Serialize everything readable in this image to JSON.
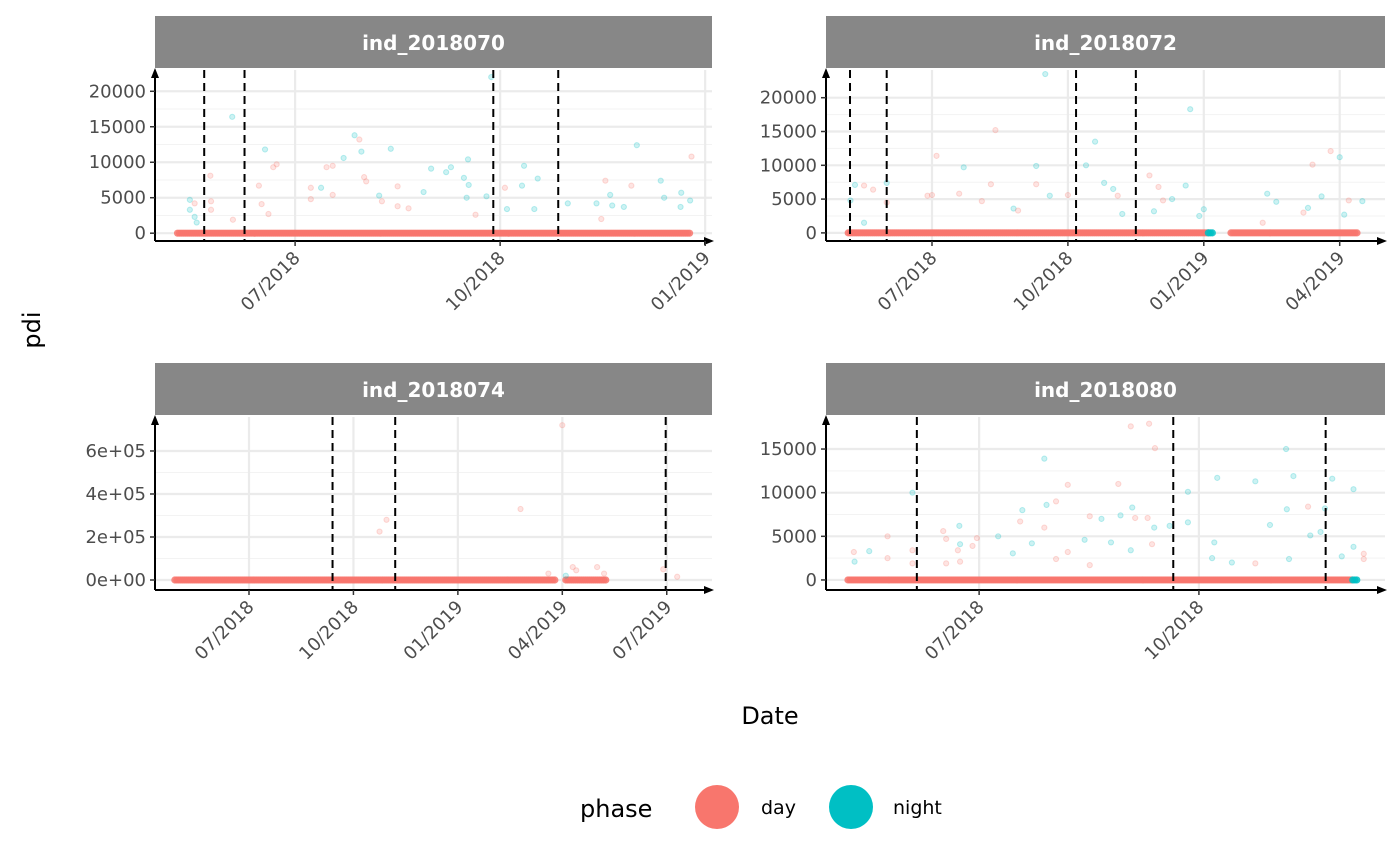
{
  "chart_data": {
    "type": "scatter",
    "x_unit": "months since 01/2018 (6 = 07/2018)",
    "xlabel": "Date",
    "ylabel": "pdi",
    "grid": true,
    "legend": {
      "title": "phase",
      "placement": "bottom",
      "entries": [
        {
          "label": "day",
          "color": "#F8766D"
        },
        {
          "label": "night",
          "color": "#00BFC4"
        }
      ]
    },
    "panels": [
      {
        "title": "ind_2018070",
        "xlim": [
          3.95,
          12.1
        ],
        "ylim": [
          -1100,
          23000
        ],
        "x_ticks": [
          {
            "value": 6,
            "label": "07/2018"
          },
          {
            "value": 9,
            "label": "10/2018"
          },
          {
            "value": 12,
            "label": "01/2019"
          }
        ],
        "y_ticks": [
          {
            "value": 0,
            "label": "0"
          },
          {
            "value": 5000,
            "label": "5000"
          },
          {
            "value": 10000,
            "label": "10000"
          },
          {
            "value": 15000,
            "label": "15000"
          },
          {
            "value": 20000,
            "label": "20000"
          }
        ],
        "vlines": [
          4.67,
          5.26,
          8.9,
          9.85
        ],
        "baseline": [
          {
            "from": 4.28,
            "to": 11.8,
            "phase": "day"
          }
        ],
        "points": {
          "night": [
            [
              4.46,
              4700
            ],
            [
              4.46,
              3300
            ],
            [
              4.53,
              2300
            ],
            [
              4.56,
              1500
            ],
            [
              5.08,
              16400
            ],
            [
              5.56,
              11800
            ],
            [
              6.38,
              6400
            ],
            [
              6.71,
              10600
            ],
            [
              6.87,
              13800
            ],
            [
              6.97,
              11500
            ],
            [
              7.23,
              5300
            ],
            [
              7.4,
              11900
            ],
            [
              7.88,
              5800
            ],
            [
              7.99,
              9100
            ],
            [
              8.21,
              8600
            ],
            [
              8.28,
              9300
            ],
            [
              8.47,
              7800
            ],
            [
              8.54,
              6800
            ],
            [
              8.51,
              5000
            ],
            [
              8.53,
              10400
            ],
            [
              8.8,
              5200
            ],
            [
              8.87,
              22000
            ],
            [
              9.1,
              3400
            ],
            [
              9.32,
              6700
            ],
            [
              9.35,
              9500
            ],
            [
              9.5,
              3400
            ],
            [
              9.55,
              7700
            ],
            [
              9.99,
              4200
            ],
            [
              10.41,
              4200
            ],
            [
              10.61,
              5400
            ],
            [
              10.64,
              3900
            ],
            [
              11.0,
              12400
            ],
            [
              11.35,
              7400
            ],
            [
              11.65,
              5700
            ],
            [
              11.4,
              5000
            ],
            [
              11.78,
              4600
            ],
            [
              11.64,
              3700
            ],
            [
              10.81,
              3700
            ]
          ],
          "day": [
            [
              4.76,
              8100
            ],
            [
              4.77,
              4500
            ],
            [
              4.77,
              3300
            ],
            [
              4.53,
              4200
            ],
            [
              5.09,
              1900
            ],
            [
              5.47,
              6700
            ],
            [
              5.51,
              4100
            ],
            [
              5.61,
              2700
            ],
            [
              5.68,
              9300
            ],
            [
              5.73,
              9700
            ],
            [
              6.23,
              6400
            ],
            [
              6.23,
              4800
            ],
            [
              6.46,
              9300
            ],
            [
              6.55,
              9500
            ],
            [
              6.55,
              5400
            ],
            [
              6.94,
              13200
            ],
            [
              7.01,
              7900
            ],
            [
              7.04,
              7300
            ],
            [
              7.27,
              4500
            ],
            [
              7.5,
              6600
            ],
            [
              7.5,
              3800
            ],
            [
              7.66,
              3500
            ],
            [
              8.64,
              2600
            ],
            [
              9.07,
              6400
            ],
            [
              10.48,
              2000
            ],
            [
              10.54,
              7400
            ],
            [
              10.92,
              6700
            ],
            [
              11.8,
              10800
            ]
          ]
        }
      },
      {
        "title": "ind_2018072",
        "xlim": [
          3.66,
          16.0
        ],
        "ylim": [
          -1200,
          24100
        ],
        "x_ticks": [
          {
            "value": 6,
            "label": "07/2018"
          },
          {
            "value": 9,
            "label": "10/2018"
          },
          {
            "value": 12,
            "label": "01/2019"
          },
          {
            "value": 15,
            "label": "04/2019"
          }
        ],
        "y_ticks": [
          {
            "value": 0,
            "label": "0"
          },
          {
            "value": 5000,
            "label": "5000"
          },
          {
            "value": 10000,
            "label": "10000"
          },
          {
            "value": 15000,
            "label": "15000"
          },
          {
            "value": 20000,
            "label": "20000"
          }
        ],
        "vlines": [
          4.19,
          5.0,
          9.18,
          10.5
        ],
        "baseline": [
          {
            "from": 4.15,
            "to": 12.1,
            "phase": "day"
          },
          {
            "from": 12.1,
            "to": 12.2,
            "phase": "night"
          },
          {
            "from": 12.6,
            "to": 15.4,
            "phase": "day"
          }
        ],
        "points": {
          "night": [
            [
              4.2,
              4800
            ],
            [
              4.3,
              7100
            ],
            [
              4.5,
              1500
            ],
            [
              5.0,
              7400
            ],
            [
              6.7,
              9700
            ],
            [
              7.8,
              3600
            ],
            [
              8.5,
              23500
            ],
            [
              8.3,
              9900
            ],
            [
              8.6,
              5500
            ],
            [
              9.4,
              10000
            ],
            [
              9.6,
              13500
            ],
            [
              9.8,
              7400
            ],
            [
              10.0,
              6500
            ],
            [
              10.2,
              2800
            ],
            [
              10.9,
              3200
            ],
            [
              11.3,
              5000
            ],
            [
              11.6,
              7000
            ],
            [
              11.7,
              18300
            ],
            [
              13.4,
              5800
            ],
            [
              13.6,
              4600
            ],
            [
              14.3,
              3700
            ],
            [
              14.6,
              5400
            ],
            [
              15.0,
              11200
            ],
            [
              15.5,
              4700
            ],
            [
              15.1,
              2700
            ],
            [
              12.0,
              3500
            ],
            [
              11.9,
              2500
            ]
          ],
          "day": [
            [
              4.5,
              7000
            ],
            [
              4.7,
              6400
            ],
            [
              5.0,
              4500
            ],
            [
              5.9,
              5500
            ],
            [
              6.1,
              11400
            ],
            [
              6.0,
              5600
            ],
            [
              6.6,
              5800
            ],
            [
              7.1,
              4700
            ],
            [
              7.3,
              7200
            ],
            [
              7.4,
              15200
            ],
            [
              7.9,
              3300
            ],
            [
              8.3,
              7200
            ],
            [
              9.0,
              5600
            ],
            [
              10.1,
              5500
            ],
            [
              10.8,
              8500
            ],
            [
              11.1,
              4800
            ],
            [
              11.0,
              6800
            ],
            [
              13.3,
              1500
            ],
            [
              14.4,
              10100
            ],
            [
              14.8,
              12100
            ],
            [
              15.2,
              4800
            ],
            [
              14.2,
              3000
            ]
          ]
        }
      },
      {
        "title": "ind_2018074",
        "xlim": [
          3.3,
          19.3
        ],
        "ylim": [
          -46500,
          758000
        ],
        "x_ticks": [
          {
            "value": 6,
            "label": "07/2018"
          },
          {
            "value": 9,
            "label": "10/2018"
          },
          {
            "value": 12,
            "label": "01/2019"
          },
          {
            "value": 15,
            "label": "04/2019"
          },
          {
            "value": 18,
            "label": "07/2019"
          }
        ],
        "y_ticks": [
          {
            "value": 0,
            "label": "0e+00"
          },
          {
            "value": 200000,
            "label": "2e+05"
          },
          {
            "value": 400000,
            "label": "4e+05"
          },
          {
            "value": 600000,
            "label": "6e+05"
          }
        ],
        "vlines": [
          8.4,
          10.2,
          17.97
        ],
        "baseline": [
          {
            "from": 3.87,
            "to": 14.8,
            "phase": "day"
          },
          {
            "from": 15.1,
            "to": 16.3,
            "phase": "day"
          }
        ],
        "points": {
          "night": [
            [
              15.1,
              20000
            ]
          ],
          "day": [
            [
              15.0,
              720000
            ],
            [
              13.8,
              330000
            ],
            [
              9.95,
              280000
            ],
            [
              9.75,
              225000
            ],
            [
              15.3,
              60000
            ],
            [
              15.4,
              45000
            ],
            [
              16.0,
              60000
            ],
            [
              16.2,
              30000
            ],
            [
              17.9,
              50000
            ],
            [
              18.3,
              15000
            ],
            [
              14.6,
              30000
            ]
          ]
        }
      },
      {
        "title": "ind_2018080",
        "xlim": [
          3.91,
          11.54
        ],
        "ylim": [
          -1150,
          18670
        ],
        "x_ticks": [
          {
            "value": 6,
            "label": "07/2018"
          },
          {
            "value": 9,
            "label": "10/2018"
          }
        ],
        "y_ticks": [
          {
            "value": 0,
            "label": "0"
          },
          {
            "value": 5000,
            "label": "5000"
          },
          {
            "value": 10000,
            "label": "10000"
          },
          {
            "value": 15000,
            "label": "15000"
          }
        ],
        "vlines": [
          5.15,
          8.65,
          10.73
        ],
        "baseline": [
          {
            "from": 4.21,
            "to": 11.1,
            "phase": "day"
          },
          {
            "from": 11.1,
            "to": 11.17,
            "phase": "night"
          }
        ],
        "points": {
          "night": [
            [
              4.3,
              2100
            ],
            [
              4.5,
              3300
            ],
            [
              5.09,
              10000
            ],
            [
              5.73,
              6200
            ],
            [
              5.74,
              4100
            ],
            [
              6.26,
              5000
            ],
            [
              6.46,
              3050
            ],
            [
              6.72,
              4200
            ],
            [
              6.89,
              13900
            ],
            [
              6.92,
              8600
            ],
            [
              6.59,
              8000
            ],
            [
              7.44,
              4600
            ],
            [
              7.67,
              7000
            ],
            [
              7.8,
              4300
            ],
            [
              7.93,
              7400
            ],
            [
              8.07,
              3400
            ],
            [
              8.09,
              8300
            ],
            [
              8.39,
              6000
            ],
            [
              8.6,
              6200
            ],
            [
              8.85,
              10100
            ],
            [
              8.85,
              6600
            ],
            [
              9.25,
              11700
            ],
            [
              9.21,
              4300
            ],
            [
              9.18,
              2500
            ],
            [
              9.45,
              2000
            ],
            [
              9.77,
              11300
            ],
            [
              9.97,
              6300
            ],
            [
              10.19,
              15000
            ],
            [
              10.2,
              8100
            ],
            [
              10.23,
              2400
            ],
            [
              10.29,
              11900
            ],
            [
              10.52,
              5100
            ],
            [
              10.66,
              5500
            ],
            [
              10.72,
              8200
            ],
            [
              10.82,
              11600
            ],
            [
              11.11,
              10400
            ],
            [
              11.11,
              3800
            ],
            [
              10.95,
              2700
            ]
          ],
          "day": [
            [
              4.29,
              3200
            ],
            [
              4.75,
              5000
            ],
            [
              4.75,
              2500
            ],
            [
              5.09,
              3400
            ],
            [
              5.09,
              1900
            ],
            [
              5.51,
              5600
            ],
            [
              5.55,
              4700
            ],
            [
              5.71,
              3400
            ],
            [
              5.55,
              1900
            ],
            [
              5.74,
              2100
            ],
            [
              5.91,
              3900
            ],
            [
              5.97,
              4800
            ],
            [
              6.56,
              6700
            ],
            [
              6.89,
              6000
            ],
            [
              7.05,
              9000
            ],
            [
              7.21,
              10900
            ],
            [
              7.21,
              3200
            ],
            [
              7.05,
              2400
            ],
            [
              7.51,
              7300
            ],
            [
              7.51,
              1700
            ],
            [
              7.9,
              11000
            ],
            [
              8.07,
              17600
            ],
            [
              8.13,
              7100
            ],
            [
              8.32,
              17900
            ],
            [
              8.3,
              7100
            ],
            [
              8.4,
              15100
            ],
            [
              8.36,
              4100
            ],
            [
              9.77,
              1900
            ],
            [
              10.49,
              8400
            ],
            [
              11.25,
              3000
            ],
            [
              11.25,
              2400
            ]
          ]
        }
      }
    ]
  }
}
